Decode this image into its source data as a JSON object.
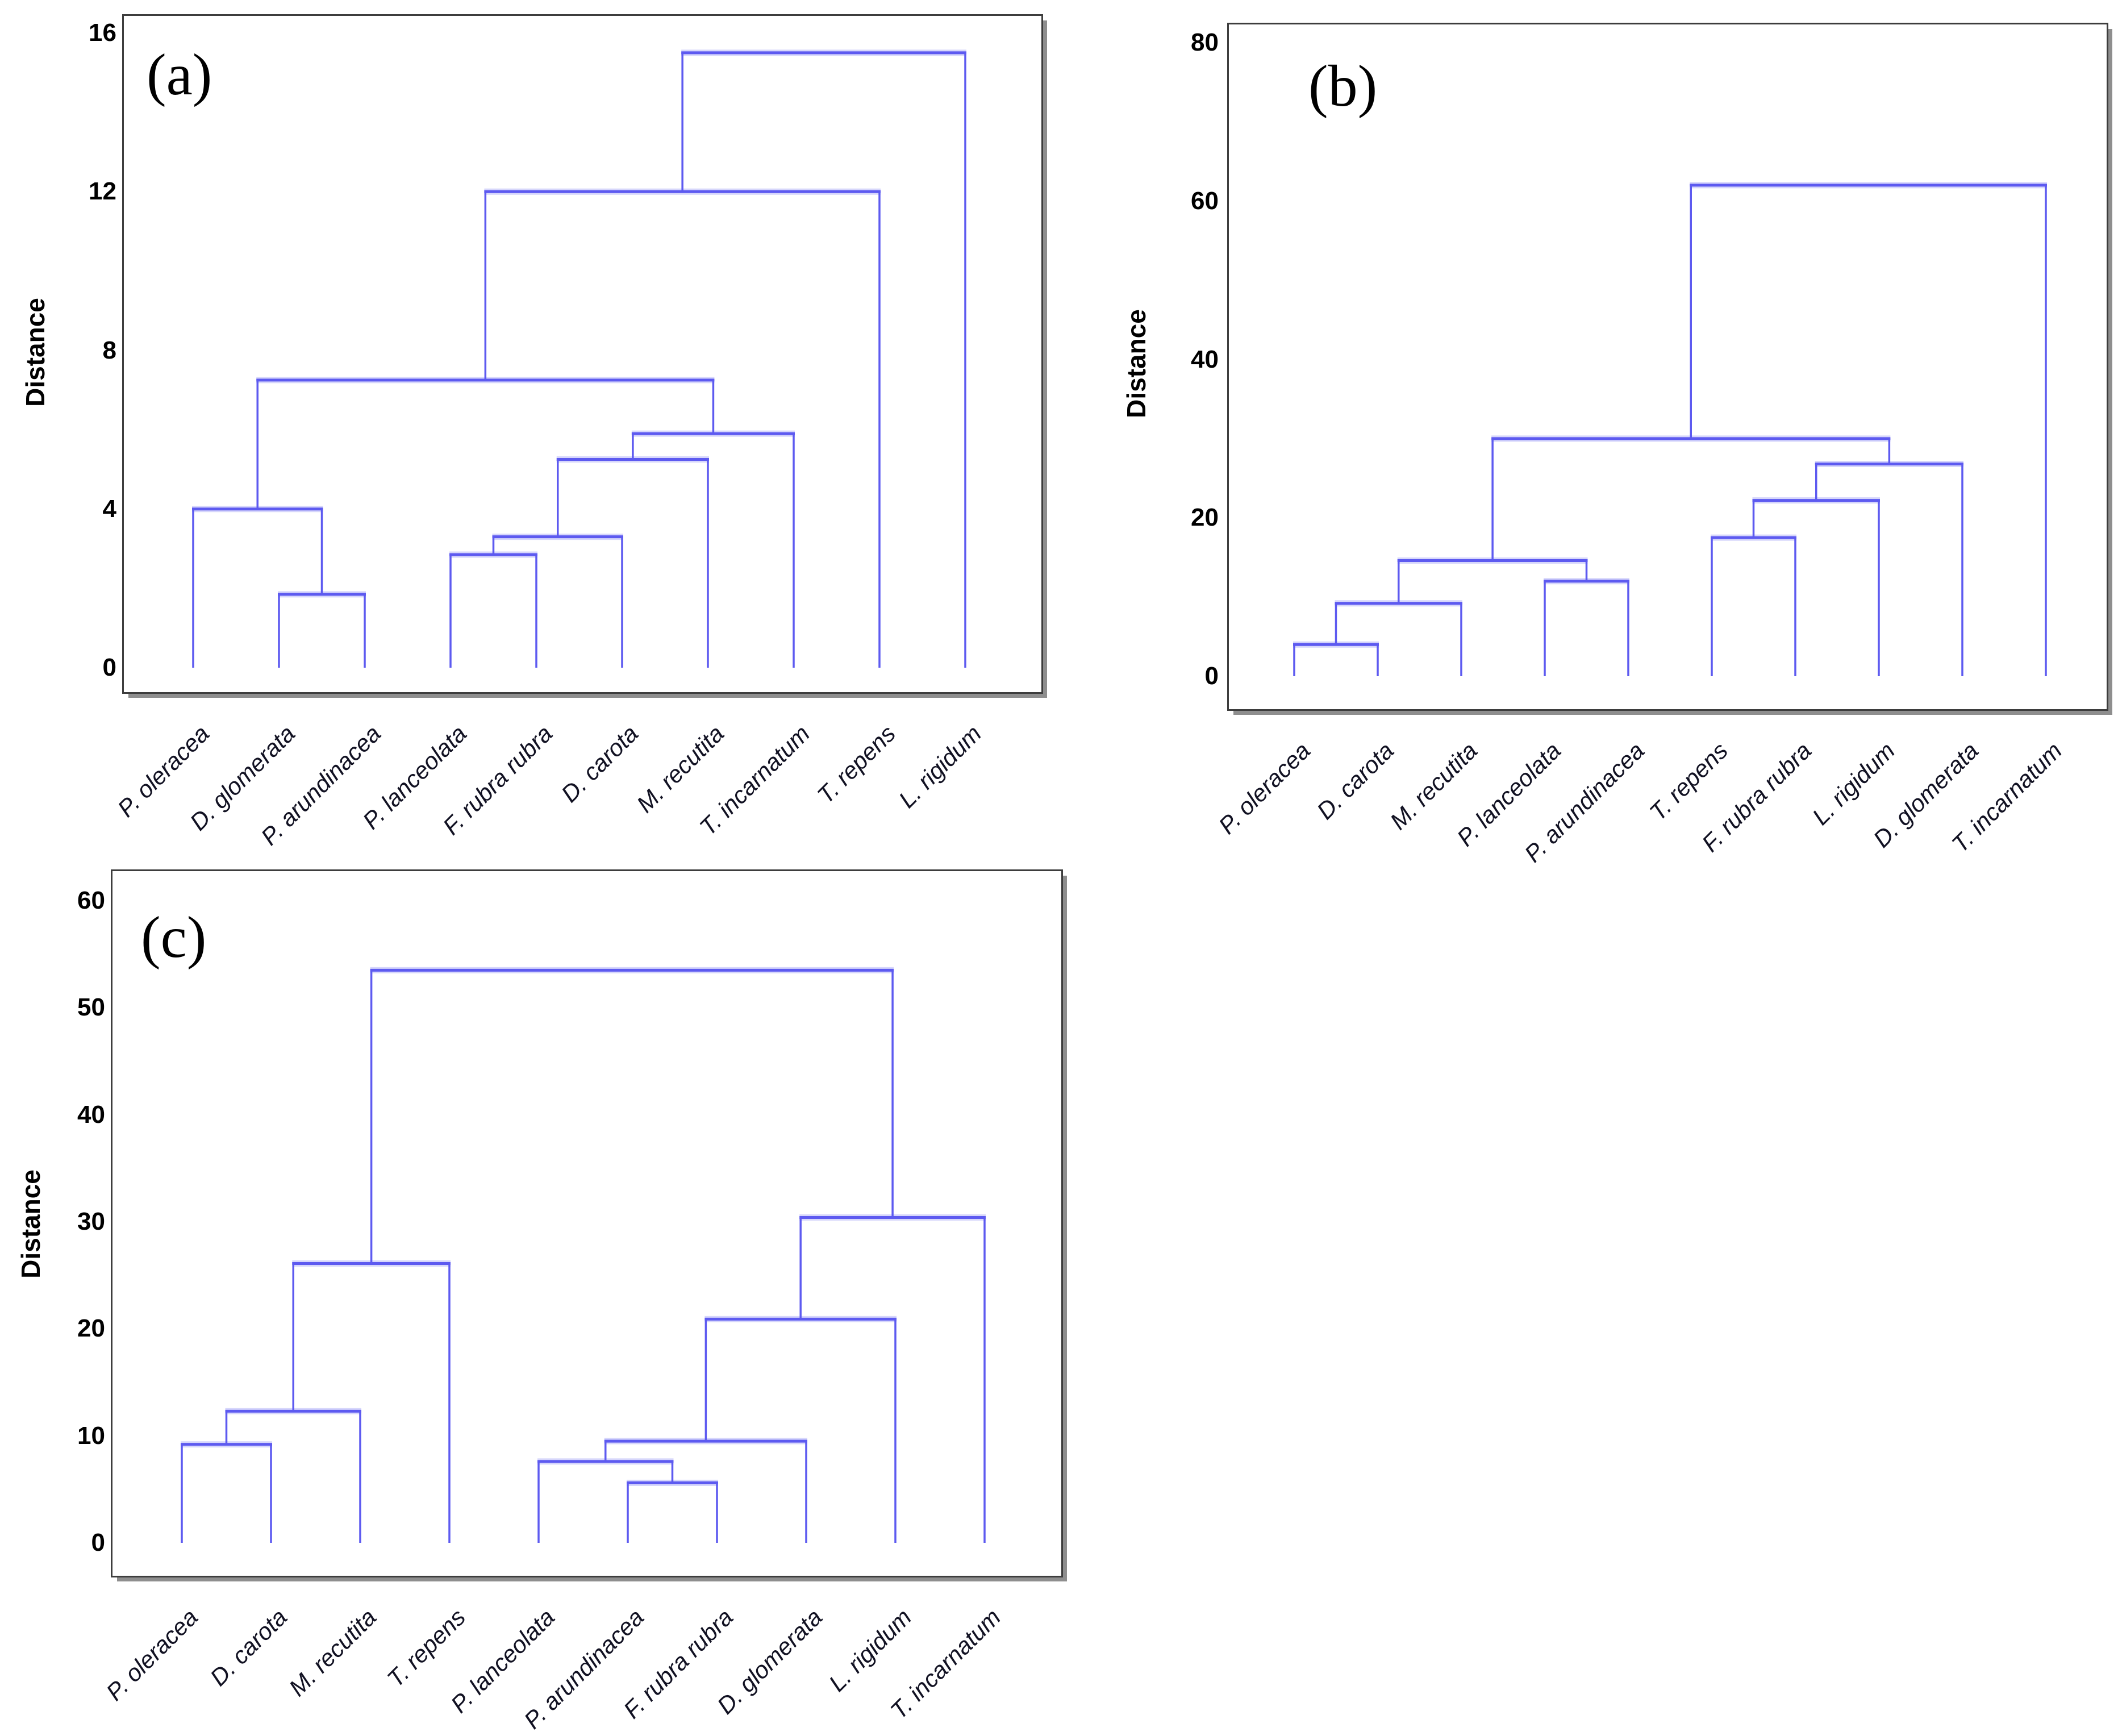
{
  "figure_title": "",
  "styles": {
    "dendrogram_line_color": "#5d5af0",
    "axis_border_color": "#3d3d3d",
    "axis_shadow_color": "#8e8e8e",
    "tick_text_color": "#000000",
    "leaf_text_color": "#111122",
    "background_color": "#ffffff"
  },
  "chart_data": [
    {
      "type": "dendrogram",
      "panel_label": "(a)",
      "ylabel": "Distance",
      "ylim": [
        0,
        16
      ],
      "yticks": [
        0,
        4,
        8,
        12,
        16
      ],
      "grid": false,
      "leaves": [
        "P. oleracea",
        "D. glomerata",
        "P. arundinacea",
        "P. lanceolata",
        "F. rubra rubra",
        "D. carota",
        "M. recutita",
        "T. incarnatum",
        "T. repens",
        "L. rigidum"
      ],
      "merges": [
        {
          "id": "M0",
          "a": "L1",
          "b": "L2",
          "height": 1.85
        },
        {
          "id": "M1",
          "a": "L0",
          "b": "M0",
          "height": 4.0
        },
        {
          "id": "M2",
          "a": "L3",
          "b": "L4",
          "height": 2.85
        },
        {
          "id": "M3",
          "a": "M2",
          "b": "L5",
          "height": 3.3
        },
        {
          "id": "M4",
          "a": "M3",
          "b": "L6",
          "height": 5.25
        },
        {
          "id": "M5",
          "a": "M4",
          "b": "L7",
          "height": 5.9
        },
        {
          "id": "M6",
          "a": "M1",
          "b": "M5",
          "height": 7.25
        },
        {
          "id": "M7",
          "a": "M6",
          "b": "L8",
          "height": 12.0
        },
        {
          "id": "M8",
          "a": "M7",
          "b": "L9",
          "height": 15.5
        }
      ]
    },
    {
      "type": "dendrogram",
      "panel_label": "(b)",
      "ylabel": "Distance",
      "ylim": [
        0,
        80
      ],
      "yticks": [
        0,
        20,
        40,
        60,
        80
      ],
      "grid": false,
      "leaves": [
        "P. oleracea",
        "D. carota",
        "M. recutita",
        "P. lanceolata",
        "P. arundinacea",
        "T. repens",
        "F. rubra rubra",
        "L. rigidum",
        "D. glomerata",
        "T. incarnatum"
      ],
      "merges": [
        {
          "id": "M0",
          "a": "L0",
          "b": "L1",
          "height": 4.0
        },
        {
          "id": "M1",
          "a": "M0",
          "b": "L2",
          "height": 9.2
        },
        {
          "id": "M2",
          "a": "L3",
          "b": "L4",
          "height": 12.0
        },
        {
          "id": "M3",
          "a": "M1",
          "b": "M2",
          "height": 14.6
        },
        {
          "id": "M4",
          "a": "L5",
          "b": "L6",
          "height": 17.5
        },
        {
          "id": "M5",
          "a": "M4",
          "b": "L7",
          "height": 22.2
        },
        {
          "id": "M6",
          "a": "M5",
          "b": "L8",
          "height": 26.8
        },
        {
          "id": "M7",
          "a": "M3",
          "b": "M6",
          "height": 30.0
        },
        {
          "id": "M8",
          "a": "M7",
          "b": "L9",
          "height": 62.0
        }
      ]
    },
    {
      "type": "dendrogram",
      "panel_label": "(c)",
      "ylabel": "Distance",
      "ylim": [
        0,
        60
      ],
      "yticks": [
        0,
        10,
        20,
        30,
        40,
        50,
        60
      ],
      "grid": false,
      "leaves": [
        "P. oleracea",
        "D. carota",
        "M. recutita",
        "T. repens",
        "P. lanceolata",
        "P. arundinacea",
        "F. rubra rubra",
        "D. glomerata",
        "L. rigidum",
        "T. incarnatum"
      ],
      "merges": [
        {
          "id": "M0",
          "a": "L0",
          "b": "L1",
          "height": 9.2
        },
        {
          "id": "M1",
          "a": "M0",
          "b": "L2",
          "height": 12.3
        },
        {
          "id": "M2",
          "a": "M1",
          "b": "L3",
          "height": 26.1
        },
        {
          "id": "M3",
          "a": "L5",
          "b": "L6",
          "height": 5.6
        },
        {
          "id": "M4",
          "a": "L4",
          "b": "M3",
          "height": 7.6
        },
        {
          "id": "M5",
          "a": "M4",
          "b": "L7",
          "height": 9.5
        },
        {
          "id": "M6",
          "a": "M5",
          "b": "L8",
          "height": 20.9
        },
        {
          "id": "M7",
          "a": "M6",
          "b": "L9",
          "height": 30.4
        },
        {
          "id": "M8",
          "a": "M2",
          "b": "M7",
          "height": 53.5
        }
      ]
    }
  ]
}
